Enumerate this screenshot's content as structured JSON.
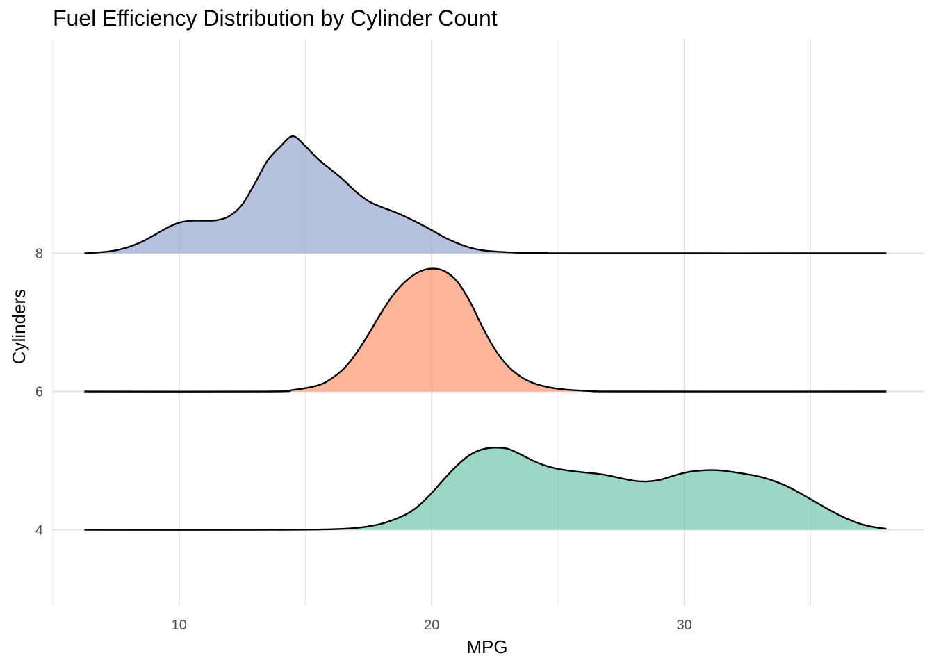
{
  "chart_data": {
    "type": "ridgeline",
    "title": "Fuel Efficiency Distribution by Cylinder Count",
    "xlabel": "MPG",
    "ylabel": "Cylinders",
    "xlim": [
      5,
      39.5
    ],
    "x_ticks": [
      10,
      20,
      30
    ],
    "x_minor_ticks": [
      5,
      15,
      25,
      35
    ],
    "y_ticks": [
      4,
      6,
      8
    ],
    "ylim": [
      2.9,
      11.1
    ],
    "density_height_scale": 3.6,
    "grid": true,
    "colors": {
      "4": "#66C2A5",
      "6": "#FC8D62",
      "8": "#8DA0CB"
    },
    "fill_opacity": 0.65,
    "series": [
      {
        "name": "4",
        "baseline": 4,
        "x": [
          6.25,
          14,
          16.5,
          17.5,
          18.2,
          19.0,
          19.5,
          20.0,
          20.5,
          21.0,
          21.5,
          22.0,
          22.5,
          23.0,
          23.5,
          24.0,
          24.5,
          25.0,
          25.5,
          26.0,
          26.5,
          27.0,
          27.5,
          28.0,
          28.5,
          29.0,
          29.5,
          30.0,
          30.5,
          31.0,
          31.5,
          32.0,
          32.5,
          33.0,
          33.5,
          34.0,
          34.5,
          35.0,
          35.5,
          36.0,
          36.5,
          37.0,
          37.5,
          38.0
        ],
        "y": [
          0,
          0.0,
          0.004,
          0.014,
          0.03,
          0.063,
          0.098,
          0.148,
          0.205,
          0.258,
          0.3,
          0.323,
          0.33,
          0.326,
          0.304,
          0.278,
          0.258,
          0.245,
          0.237,
          0.231,
          0.226,
          0.218,
          0.207,
          0.197,
          0.194,
          0.2,
          0.215,
          0.229,
          0.237,
          0.24,
          0.238,
          0.231,
          0.223,
          0.213,
          0.198,
          0.178,
          0.152,
          0.123,
          0.094,
          0.066,
          0.042,
          0.023,
          0.011,
          0.004
        ]
      },
      {
        "name": "6",
        "baseline": 6,
        "x": [
          6.25,
          13.5,
          14.5,
          15.5,
          16.0,
          16.5,
          17.0,
          17.5,
          18.0,
          18.5,
          19.0,
          19.5,
          20.0,
          20.5,
          21.0,
          21.5,
          22.0,
          22.5,
          23.0,
          23.5,
          24.0,
          24.5,
          25.0,
          25.5,
          26.0,
          26.5,
          27.5,
          38.0
        ],
        "y": [
          0,
          0,
          0.006,
          0.025,
          0.05,
          0.09,
          0.152,
          0.231,
          0.316,
          0.392,
          0.446,
          0.481,
          0.494,
          0.484,
          0.443,
          0.364,
          0.261,
          0.17,
          0.104,
          0.061,
          0.035,
          0.02,
          0.011,
          0.006,
          0.003,
          0.001,
          0.0,
          0
        ]
      },
      {
        "name": "8",
        "baseline": 8,
        "x": [
          6.25,
          7.0,
          7.5,
          8.0,
          8.5,
          9.0,
          9.5,
          10.0,
          10.5,
          11.0,
          11.5,
          12.0,
          12.5,
          13.0,
          13.5,
          14.0,
          14.5,
          15.0,
          15.5,
          16.0,
          16.5,
          17.0,
          17.5,
          18.0,
          18.5,
          19.0,
          19.5,
          20.0,
          20.5,
          21.0,
          21.5,
          22.0,
          22.5,
          23.0,
          23.5,
          24.5,
          26.0,
          38.0
        ],
        "y": [
          0.0,
          0.005,
          0.012,
          0.025,
          0.045,
          0.072,
          0.101,
          0.123,
          0.131,
          0.131,
          0.133,
          0.15,
          0.196,
          0.281,
          0.372,
          0.428,
          0.47,
          0.43,
          0.378,
          0.337,
          0.295,
          0.247,
          0.209,
          0.186,
          0.167,
          0.145,
          0.12,
          0.093,
          0.064,
          0.041,
          0.023,
          0.012,
          0.007,
          0.004,
          0.002,
          0.001,
          0.0,
          0
        ]
      }
    ]
  }
}
